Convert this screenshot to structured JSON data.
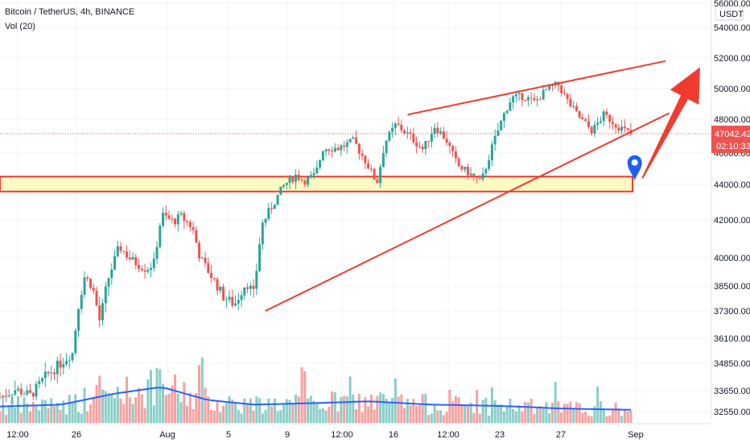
{
  "header": {
    "symbol_line": "Bitcoin / TetherUS, 4h, BINANCE",
    "indicator": "Vol (20)"
  },
  "price_axis": {
    "currency": "USDT",
    "last_price": "47042.42",
    "countdown": "02:10:33"
  },
  "colors": {
    "up": "#26a69a",
    "down": "#ef5350",
    "drawing": "#f23a2f",
    "vol_ma": "#2962ff",
    "zone_fill": "#fff9c4",
    "marker": "#1e5eff",
    "grid": "#f0f3fa"
  },
  "chart_data": {
    "type": "candlestick",
    "title": "Bitcoin / TetherUS, 4h, BINANCE",
    "y_ticks": [
      "32550.00",
      "33650.00",
      "34850.00",
      "36100.00",
      "37300.00",
      "38500.00",
      "40000.00",
      "42000.00",
      "44000.00",
      "46000.00",
      "48000.00",
      "50000.00",
      "52000.00",
      "54000.00",
      "56000.00"
    ],
    "x_ticks": [
      "12:00",
      "26",
      "Aug",
      "5",
      "9",
      "12:00",
      "16",
      "12:00",
      "23",
      "27",
      "Sep"
    ],
    "ohlc_path": [
      {
        "t": 0,
        "p": 33300
      },
      {
        "t": 0.02,
        "p": 33700
      },
      {
        "t": 0.04,
        "p": 33400
      },
      {
        "t": 0.06,
        "p": 34300
      },
      {
        "t": 0.08,
        "p": 34900
      },
      {
        "t": 0.095,
        "p": 35400
      },
      {
        "t": 0.1,
        "p": 37200
      },
      {
        "t": 0.11,
        "p": 39000
      },
      {
        "t": 0.12,
        "p": 38500
      },
      {
        "t": 0.13,
        "p": 36800
      },
      {
        "t": 0.14,
        "p": 38800
      },
      {
        "t": 0.155,
        "p": 40600
      },
      {
        "t": 0.17,
        "p": 39900
      },
      {
        "t": 0.19,
        "p": 39400
      },
      {
        "t": 0.2,
        "p": 39700
      },
      {
        "t": 0.21,
        "p": 42300
      },
      {
        "t": 0.225,
        "p": 41900
      },
      {
        "t": 0.235,
        "p": 42200
      },
      {
        "t": 0.25,
        "p": 41600
      },
      {
        "t": 0.26,
        "p": 40000
      },
      {
        "t": 0.275,
        "p": 39000
      },
      {
        "t": 0.29,
        "p": 38000
      },
      {
        "t": 0.305,
        "p": 37600
      },
      {
        "t": 0.32,
        "p": 38700
      },
      {
        "t": 0.33,
        "p": 38100
      },
      {
        "t": 0.34,
        "p": 41700
      },
      {
        "t": 0.355,
        "p": 42900
      },
      {
        "t": 0.37,
        "p": 44000
      },
      {
        "t": 0.385,
        "p": 44600
      },
      {
        "t": 0.395,
        "p": 44200
      },
      {
        "t": 0.41,
        "p": 44600
      },
      {
        "t": 0.42,
        "p": 46300
      },
      {
        "t": 0.44,
        "p": 46300
      },
      {
        "t": 0.46,
        "p": 46700
      },
      {
        "t": 0.475,
        "p": 45500
      },
      {
        "t": 0.49,
        "p": 44100
      },
      {
        "t": 0.5,
        "p": 46600
      },
      {
        "t": 0.515,
        "p": 47700
      },
      {
        "t": 0.535,
        "p": 46900
      },
      {
        "t": 0.55,
        "p": 46200
      },
      {
        "t": 0.565,
        "p": 47600
      },
      {
        "t": 0.58,
        "p": 46800
      },
      {
        "t": 0.595,
        "p": 45200
      },
      {
        "t": 0.61,
        "p": 44700
      },
      {
        "t": 0.625,
        "p": 44100
      },
      {
        "t": 0.64,
        "p": 46400
      },
      {
        "t": 0.655,
        "p": 48300
      },
      {
        "t": 0.665,
        "p": 49400
      },
      {
        "t": 0.68,
        "p": 49500
      },
      {
        "t": 0.695,
        "p": 49100
      },
      {
        "t": 0.71,
        "p": 49900
      },
      {
        "t": 0.725,
        "p": 50300
      },
      {
        "t": 0.74,
        "p": 49000
      },
      {
        "t": 0.755,
        "p": 48000
      },
      {
        "t": 0.77,
        "p": 47300
      },
      {
        "t": 0.785,
        "p": 48300
      },
      {
        "t": 0.8,
        "p": 47700
      },
      {
        "t": 0.82,
        "p": 47100
      }
    ],
    "candle_count": 210,
    "volume_ma_path": [
      {
        "t": 0,
        "v": 0.25
      },
      {
        "t": 0.08,
        "v": 0.28
      },
      {
        "t": 0.15,
        "v": 0.45
      },
      {
        "t": 0.21,
        "v": 0.55
      },
      {
        "t": 0.27,
        "v": 0.35
      },
      {
        "t": 0.33,
        "v": 0.28
      },
      {
        "t": 0.4,
        "v": 0.3
      },
      {
        "t": 0.48,
        "v": 0.33
      },
      {
        "t": 0.56,
        "v": 0.28
      },
      {
        "t": 0.65,
        "v": 0.26
      },
      {
        "t": 0.73,
        "v": 0.22
      },
      {
        "t": 0.82,
        "v": 0.2
      }
    ],
    "drawings": {
      "support_zone": {
        "low": 43600,
        "high": 44500
      },
      "lower_trendline": [
        {
          "t": 0.345,
          "p": 37300
        },
        {
          "t": 0.87,
          "p": 48400
        }
      ],
      "upper_trendline": [
        {
          "t": 0.53,
          "p": 48300
        },
        {
          "t": 0.865,
          "p": 51800
        }
      ],
      "arrow": [
        {
          "t": 0.835,
          "p": 44400
        },
        {
          "t": 0.91,
          "p": 51400
        }
      ],
      "marker": {
        "t": 0.825,
        "p": 45400
      }
    }
  }
}
